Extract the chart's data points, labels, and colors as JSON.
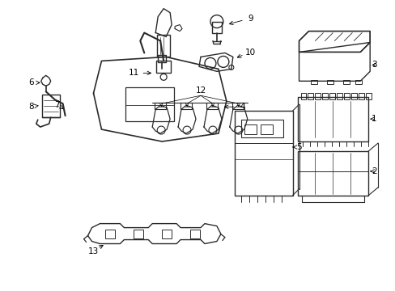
{
  "bg_color": "#ffffff",
  "line_color": "#2a2a2a",
  "text_color": "#000000",
  "fig_width": 4.89,
  "fig_height": 3.6,
  "dpi": 100,
  "xlim": [
    0,
    489
  ],
  "ylim": [
    0,
    360
  ]
}
